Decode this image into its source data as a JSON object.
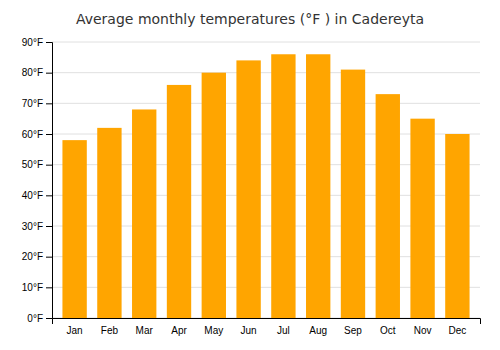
{
  "chart_data": {
    "type": "bar",
    "title": "Average monthly temperatures (°F ) in Cadereyta",
    "categories": [
      "Jan",
      "Feb",
      "Mar",
      "Apr",
      "May",
      "Jun",
      "Jul",
      "Aug",
      "Sep",
      "Oct",
      "Nov",
      "Dec"
    ],
    "values": [
      58,
      62,
      68,
      76,
      80,
      84,
      86,
      86,
      81,
      73,
      65,
      60
    ],
    "color": "#FFA500",
    "ylim": [
      0,
      90
    ],
    "yticks": [
      {
        "value": 0,
        "label": "0°F"
      },
      {
        "value": 10,
        "label": "10°F"
      },
      {
        "value": 20,
        "label": "20°F"
      },
      {
        "value": 30,
        "label": "30°F"
      },
      {
        "value": 40,
        "label": "40°F"
      },
      {
        "value": 50,
        "label": "50°F"
      },
      {
        "value": 60,
        "label": "60°F"
      },
      {
        "value": 70,
        "label": "70°F"
      },
      {
        "value": 80,
        "label": "80°F"
      },
      {
        "value": 90,
        "label": "90°F"
      }
    ],
    "grid": true
  }
}
